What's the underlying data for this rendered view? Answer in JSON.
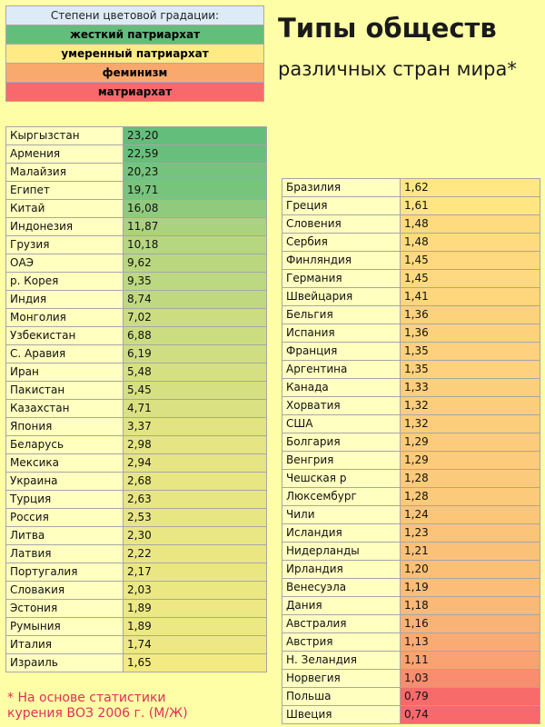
{
  "legend": {
    "header": "Степени цветовой градации:",
    "items": [
      {
        "label": "жесткий патриархат",
        "color": "#63be7b"
      },
      {
        "label": "умеренный патриархат",
        "color": "#ffeb84"
      },
      {
        "label": "феминизм",
        "color": "#f9a96e"
      },
      {
        "label": "матриархат",
        "color": "#f8696b"
      }
    ],
    "header_color": "#ddebf7"
  },
  "title": {
    "main": "Типы обществ",
    "sub": "различных стран мира*"
  },
  "left_table": [
    {
      "country": "Кыргызстан",
      "value": "23,20",
      "color": "#63be7b"
    },
    {
      "country": "Армения",
      "value": "22,59",
      "color": "#67bf7b"
    },
    {
      "country": "Малайзия",
      "value": "20,23",
      "color": "#75c37c"
    },
    {
      "country": "Египет",
      "value": "19,71",
      "color": "#79c47c"
    },
    {
      "country": "Китай",
      "value": "16,08",
      "color": "#90ca7d"
    },
    {
      "country": "Индонезия",
      "value": "11,87",
      "color": "#abd27f"
    },
    {
      "country": "Грузия",
      "value": "10,18",
      "color": "#b6d680"
    },
    {
      "country": "ОАЭ",
      "value": "9,62",
      "color": "#bad780"
    },
    {
      "country": "р. Корея",
      "value": "9,35",
      "color": "#bcd880"
    },
    {
      "country": "Индия",
      "value": "8,74",
      "color": "#c0d980"
    },
    {
      "country": "Монголия",
      "value": "7,02",
      "color": "#cbdc81"
    },
    {
      "country": "Узбекистан",
      "value": "6,88",
      "color": "#ccdd81"
    },
    {
      "country": "С. Аравия",
      "value": "6,19",
      "color": "#d0de82"
    },
    {
      "country": "Иран",
      "value": "5,48",
      "color": "#d5e082"
    },
    {
      "country": "Пакистан",
      "value": "5,45",
      "color": "#d5e082"
    },
    {
      "country": "Казахстан",
      "value": "4,71",
      "color": "#dae182"
    },
    {
      "country": "Япония",
      "value": "3,37",
      "color": "#e2e483"
    },
    {
      "country": "Беларусь",
      "value": "2,98",
      "color": "#e5e583"
    },
    {
      "country": "Мексика",
      "value": "2,94",
      "color": "#e5e583"
    },
    {
      "country": "Украина",
      "value": "2,68",
      "color": "#e7e683"
    },
    {
      "country": "Турция",
      "value": "2,63",
      "color": "#e7e683"
    },
    {
      "country": "Россия",
      "value": "2,53",
      "color": "#e8e683"
    },
    {
      "country": "Литва",
      "value": "2,30",
      "color": "#e9e783"
    },
    {
      "country": "Латвия",
      "value": "2,22",
      "color": "#eae783"
    },
    {
      "country": "Португалия",
      "value": "2,17",
      "color": "#eae783"
    },
    {
      "country": "Словакия",
      "value": "2,03",
      "color": "#ebe783"
    },
    {
      "country": "Эстония",
      "value": "1,89",
      "color": "#ece883"
    },
    {
      "country": "Румыния",
      "value": "1,89",
      "color": "#ece883"
    },
    {
      "country": "Италия",
      "value": "1,74",
      "color": "#ede884"
    },
    {
      "country": "Израиль",
      "value": "1,65",
      "color": "#f4ea84"
    }
  ],
  "right_table": [
    {
      "country": "Бразилия",
      "value": "1,62",
      "color": "#ffe884"
    },
    {
      "country": "Греция",
      "value": "1,61",
      "color": "#ffe683"
    },
    {
      "country": "Словения",
      "value": "1,48",
      "color": "#fedb80"
    },
    {
      "country": "Сербия",
      "value": "1,48",
      "color": "#fedb80"
    },
    {
      "country": "Финляндия",
      "value": "1,45",
      "color": "#fed97f"
    },
    {
      "country": "Германия",
      "value": "1,45",
      "color": "#fed97f"
    },
    {
      "country": "Швейцария",
      "value": "1,41",
      "color": "#fdd67e"
    },
    {
      "country": "Бельгия",
      "value": "1,36",
      "color": "#fdd27d"
    },
    {
      "country": "Испания",
      "value": "1,36",
      "color": "#fdd27d"
    },
    {
      "country": "Франция",
      "value": "1,35",
      "color": "#fdd17d"
    },
    {
      "country": "Аргентина",
      "value": "1,35",
      "color": "#fdd17d"
    },
    {
      "country": "Канада",
      "value": "1,33",
      "color": "#fccf7c"
    },
    {
      "country": "Хорватия",
      "value": "1,32",
      "color": "#fcce7c"
    },
    {
      "country": "США",
      "value": "1,32",
      "color": "#fcce7c"
    },
    {
      "country": "Болгария",
      "value": "1,29",
      "color": "#fccb7b"
    },
    {
      "country": "Венгрия",
      "value": "1,29",
      "color": "#fccb7b"
    },
    {
      "country": "Чешская р",
      "value": "1,28",
      "color": "#fcca7b"
    },
    {
      "country": "Люксембург",
      "value": "1,28",
      "color": "#fcca7b"
    },
    {
      "country": "Чили",
      "value": "1,24",
      "color": "#fbc67a"
    },
    {
      "country": "Исландия",
      "value": "1,23",
      "color": "#fbc479"
    },
    {
      "country": "Нидерланды",
      "value": "1,21",
      "color": "#fbc179"
    },
    {
      "country": "Ирландия",
      "value": "1,20",
      "color": "#fbbf78"
    },
    {
      "country": "Венесуэла",
      "value": "1,19",
      "color": "#fbbd78"
    },
    {
      "country": "Дания",
      "value": "1,18",
      "color": "#fab977"
    },
    {
      "country": "Австралия",
      "value": "1,16",
      "color": "#fab376"
    },
    {
      "country": "Австрия",
      "value": "1,13",
      "color": "#faab74"
    },
    {
      "country": "Н. Зеландия",
      "value": "1,11",
      "color": "#f9a372"
    },
    {
      "country": "Норвегия",
      "value": "1,03",
      "color": "#f98d6f"
    },
    {
      "country": "Польша",
      "value": "0,79",
      "color": "#f86b6b"
    },
    {
      "country": "Швеция",
      "value": "0,74",
      "color": "#f8696b"
    }
  ],
  "footnote": {
    "line1": "* На основе статистики",
    "line2": "курения ВОЗ 2006 г. (М/Ж)"
  }
}
